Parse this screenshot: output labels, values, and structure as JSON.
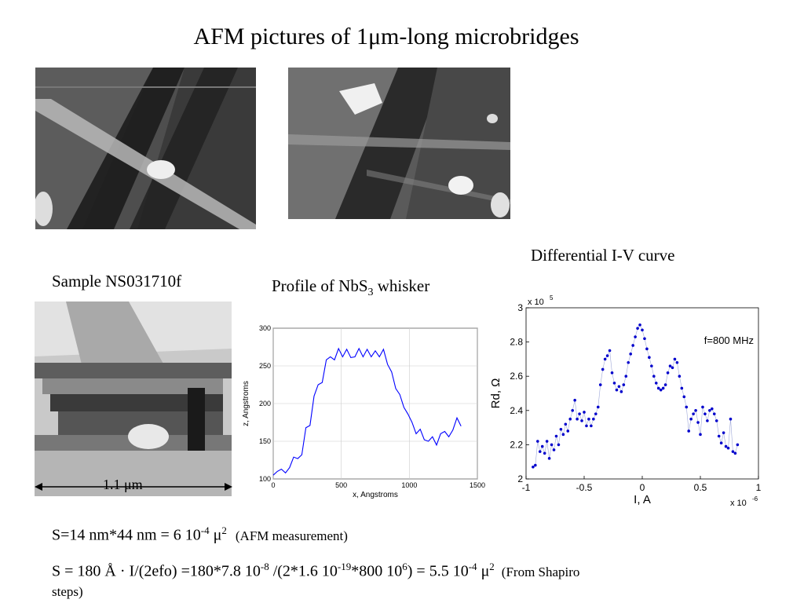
{
  "title": "AFM pictures  of 1μm-long microbridges",
  "sample_label": "Sample NS031710f",
  "scale_label": "1.1 μm",
  "profile_title_pre": "Profile of NbS",
  "profile_title_sub": "3",
  "profile_title_post": " whisker",
  "iv_title": "Differential I-V curve",
  "formula1": {
    "text_a": "S=14 nm*44 nm = 6 10",
    "exp1": "-4",
    "text_b": " μ",
    "exp2": "2",
    "note": "(AFM measurement)"
  },
  "formula2": {
    "t1": "S = 180 Å · I/(2efo) =180*7.8 10",
    "e1": "-8",
    "t2": " /(2*1.6 10",
    "e2": "-19",
    "t3": "*800 10",
    "e3": "6",
    "t4": ") = 5.5 10",
    "e4": "-4",
    "t5": " μ",
    "e5": "2",
    "note1": "(From Shapiro",
    "note2": "steps)"
  },
  "chart_data": [
    {
      "type": "line",
      "title": "",
      "xlabel": "x, Angstroms",
      "ylabel": "z, Angstroms",
      "xlim": [
        0,
        1500
      ],
      "ylim": [
        100,
        300
      ],
      "xticks": [
        0,
        500,
        1000,
        1500
      ],
      "yticks": [
        100,
        150,
        200,
        250,
        300
      ],
      "grid": true,
      "color": "#0000ff",
      "x": [
        0,
        30,
        60,
        90,
        120,
        150,
        180,
        210,
        240,
        270,
        300,
        330,
        360,
        390,
        420,
        450,
        480,
        510,
        540,
        570,
        600,
        630,
        660,
        690,
        720,
        750,
        780,
        810,
        840,
        870,
        900,
        930,
        960,
        990,
        1020,
        1050,
        1080,
        1110,
        1140,
        1170,
        1200,
        1230,
        1260,
        1290,
        1320,
        1350,
        1380
      ],
      "y": [
        105,
        110,
        113,
        108,
        115,
        129,
        127,
        132,
        168,
        171,
        210,
        225,
        228,
        258,
        262,
        258,
        273,
        262,
        272,
        261,
        262,
        273,
        262,
        272,
        262,
        270,
        262,
        272,
        252,
        242,
        220,
        212,
        195,
        186,
        175,
        160,
        166,
        152,
        150,
        156,
        145,
        160,
        163,
        156,
        165,
        181,
        170
      ]
    },
    {
      "type": "scatter",
      "title": "",
      "xlabel": "I, A",
      "ylabel": "Rd, Ω",
      "x_multiplier": "x 10-6",
      "y_multiplier": "x 105",
      "xlim": [
        -1,
        1
      ],
      "ylim": [
        2,
        3
      ],
      "xticks": [
        -1,
        -0.5,
        0,
        0.5,
        1
      ],
      "yticks": [
        2,
        2.2,
        2.4,
        2.6,
        2.8,
        3
      ],
      "yticklabels": [
        "2",
        "2.2",
        "2.4",
        "2.6",
        "2.8",
        "3"
      ],
      "annotation": "f=800 MHz",
      "grid": false,
      "color": "#0000cc",
      "x": [
        -0.94,
        -0.92,
        -0.9,
        -0.88,
        -0.86,
        -0.84,
        -0.82,
        -0.8,
        -0.78,
        -0.76,
        -0.74,
        -0.72,
        -0.7,
        -0.68,
        -0.66,
        -0.64,
        -0.62,
        -0.6,
        -0.58,
        -0.56,
        -0.54,
        -0.52,
        -0.5,
        -0.48,
        -0.46,
        -0.44,
        -0.42,
        -0.4,
        -0.38,
        -0.36,
        -0.34,
        -0.32,
        -0.3,
        -0.28,
        -0.26,
        -0.24,
        -0.22,
        -0.2,
        -0.18,
        -0.16,
        -0.14,
        -0.12,
        -0.1,
        -0.08,
        -0.06,
        -0.04,
        -0.02,
        0,
        0.02,
        0.04,
        0.06,
        0.08,
        0.1,
        0.12,
        0.14,
        0.16,
        0.18,
        0.2,
        0.22,
        0.24,
        0.26,
        0.28,
        0.3,
        0.32,
        0.34,
        0.36,
        0.38,
        0.4,
        0.42,
        0.44,
        0.46,
        0.48,
        0.5,
        0.52,
        0.54,
        0.56,
        0.58,
        0.6,
        0.62,
        0.64,
        0.66,
        0.68,
        0.7,
        0.72,
        0.74,
        0.76,
        0.78,
        0.8,
        0.82
      ],
      "y": [
        2.07,
        2.08,
        2.22,
        2.16,
        2.19,
        2.15,
        2.22,
        2.12,
        2.2,
        2.17,
        2.25,
        2.2,
        2.29,
        2.26,
        2.32,
        2.28,
        2.35,
        2.4,
        2.46,
        2.35,
        2.38,
        2.34,
        2.39,
        2.31,
        2.35,
        2.31,
        2.35,
        2.38,
        2.42,
        2.55,
        2.64,
        2.7,
        2.72,
        2.75,
        2.62,
        2.56,
        2.52,
        2.54,
        2.51,
        2.55,
        2.6,
        2.68,
        2.73,
        2.78,
        2.83,
        2.88,
        2.9,
        2.87,
        2.82,
        2.76,
        2.71,
        2.66,
        2.6,
        2.56,
        2.53,
        2.52,
        2.53,
        2.55,
        2.62,
        2.66,
        2.65,
        2.7,
        2.68,
        2.6,
        2.53,
        2.48,
        2.42,
        2.28,
        2.35,
        2.38,
        2.4,
        2.33,
        2.26,
        2.42,
        2.38,
        2.34,
        2.4,
        2.41,
        2.38,
        2.34,
        2.25,
        2.21,
        2.27,
        2.19,
        2.18,
        2.35,
        2.16,
        2.15,
        2.2
      ]
    }
  ]
}
